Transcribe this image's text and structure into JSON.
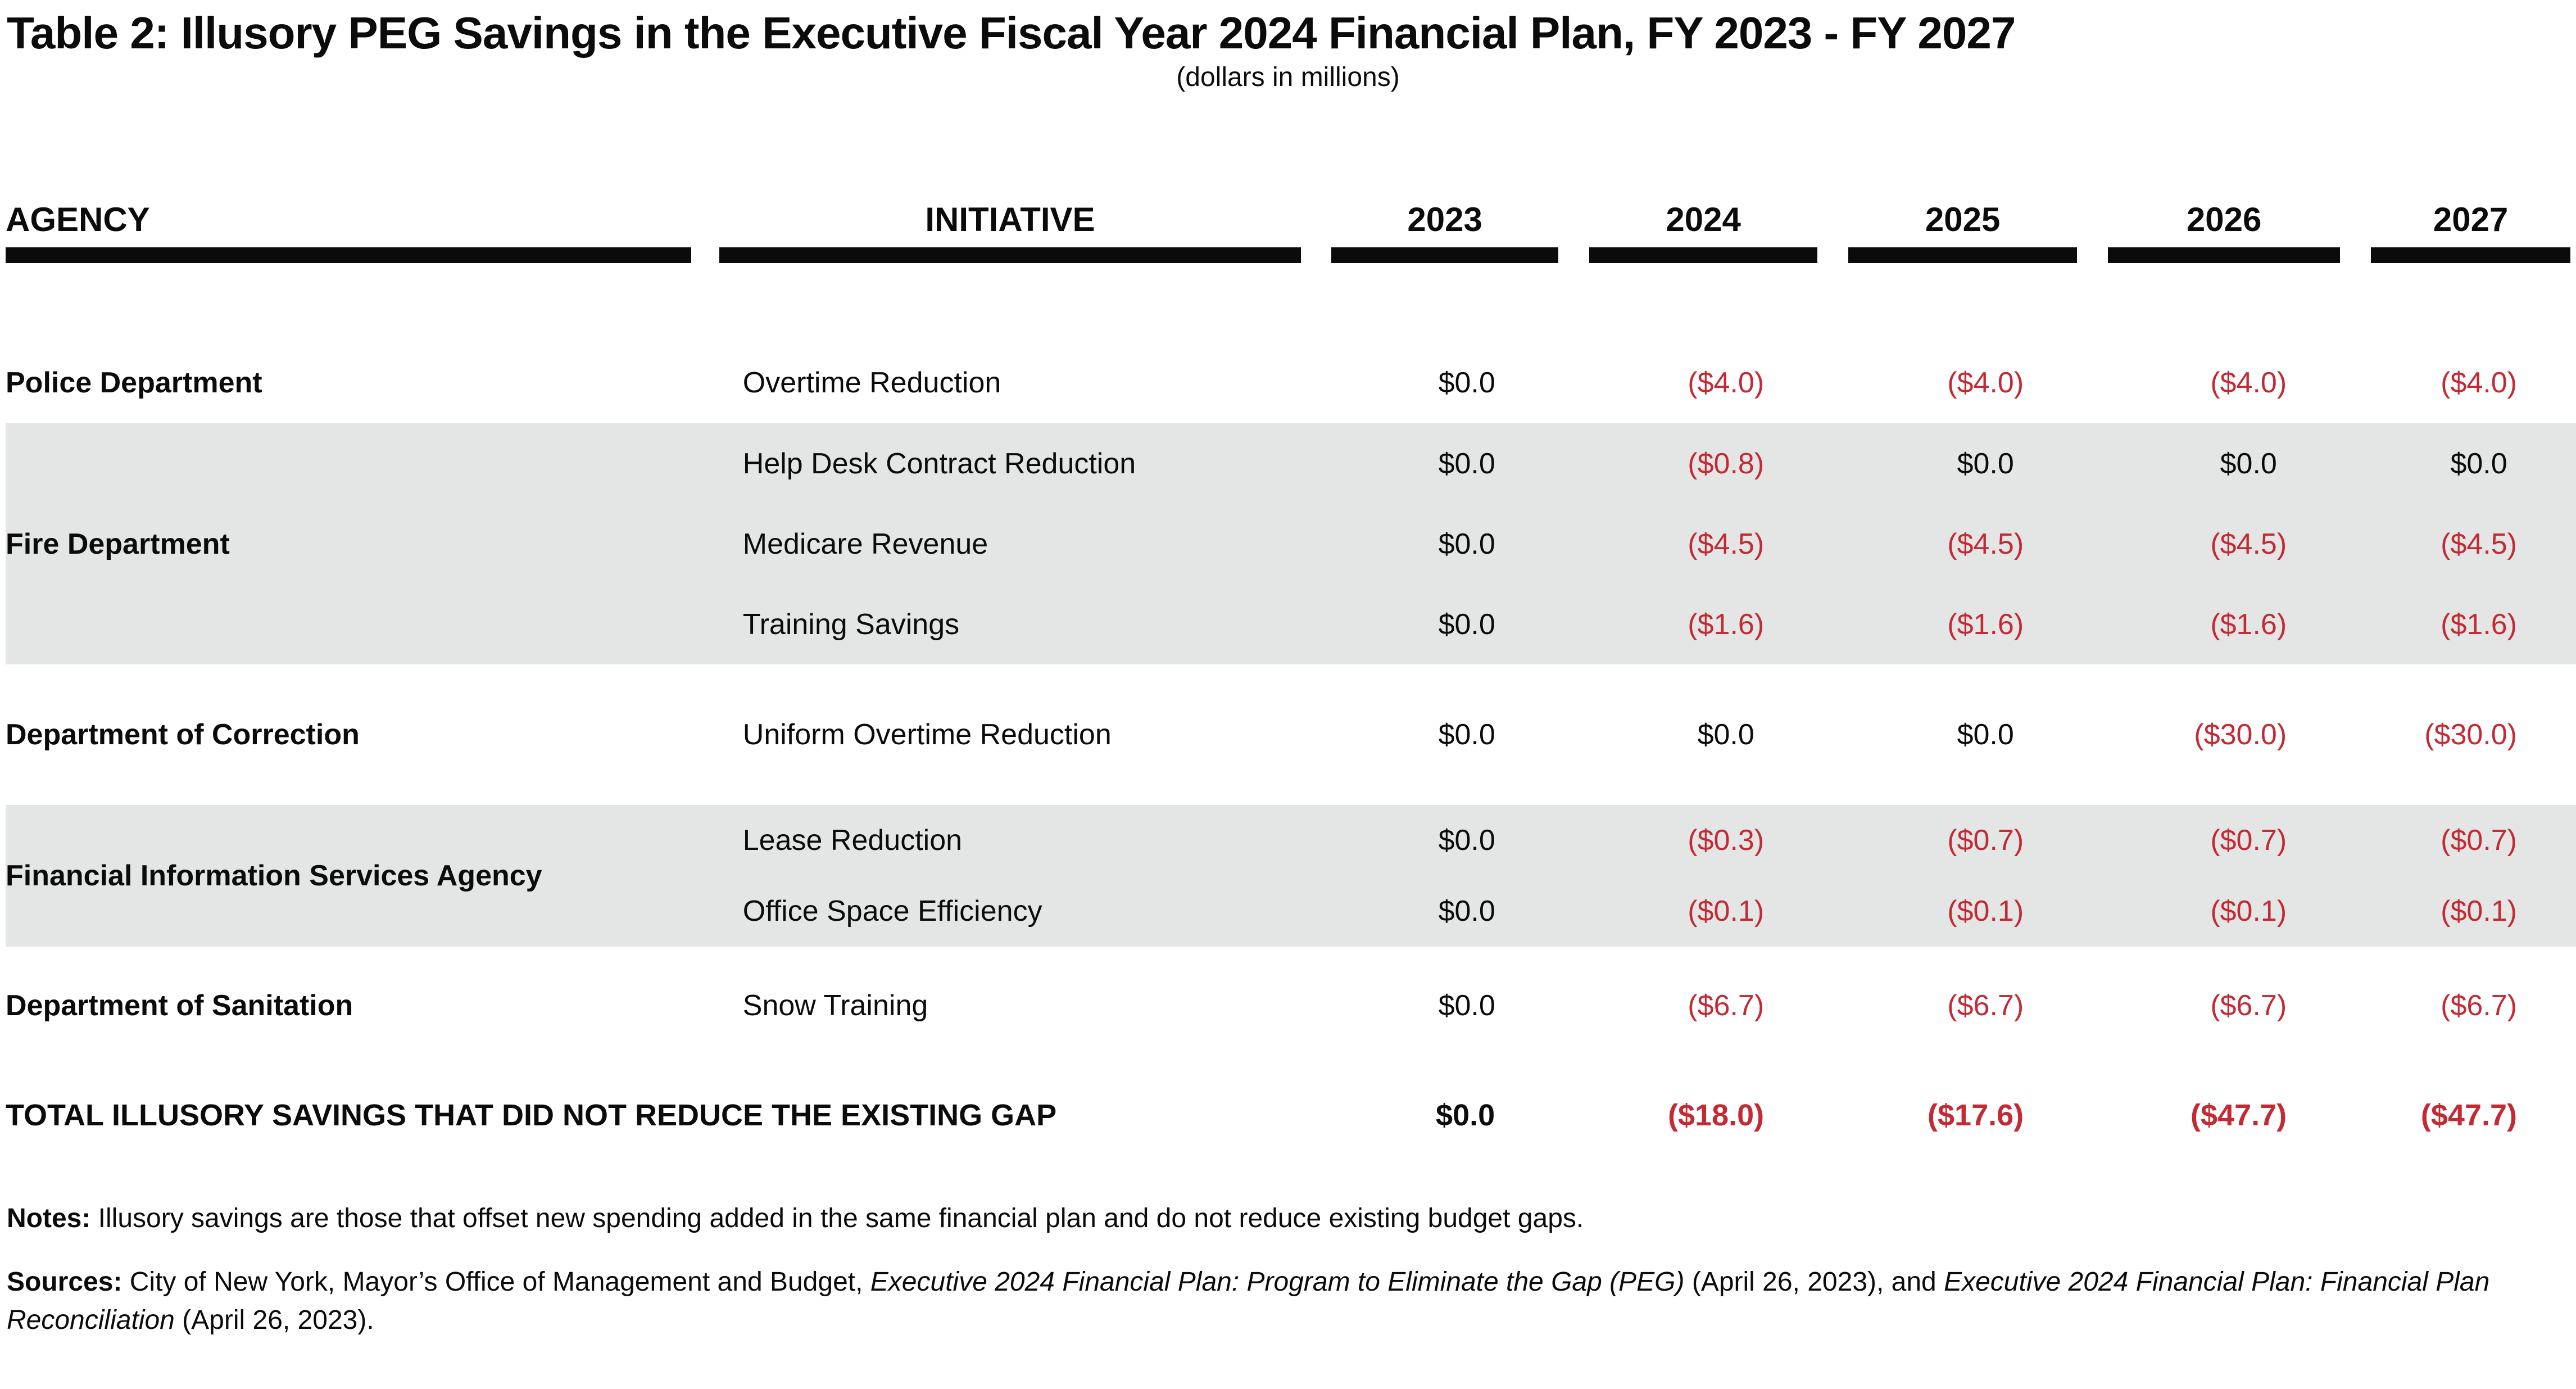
{
  "title": "Table 2: Illusory PEG Savings in the Executive Fiscal Year 2024 Financial Plan, FY 2023 - FY 2027",
  "subtitle": "(dollars in millions)",
  "colors": {
    "negative_red": "#c42a33",
    "band_gray": "#e4e6e5",
    "header_bar_black": "#0b0b0b"
  },
  "table": {
    "columns": [
      "AGENCY",
      "INITIATIVE",
      "2023",
      "2024",
      "2025",
      "2026",
      "2027"
    ],
    "groups": [
      {
        "agency": "Police Department",
        "shaded": false,
        "rows": [
          {
            "initiative": "Overtime Reduction",
            "values": [
              "$0.0",
              "($4.0)",
              "($4.0)",
              "($4.0)",
              "($4.0)"
            ]
          }
        ]
      },
      {
        "agency": "Fire Department",
        "shaded": true,
        "rows": [
          {
            "initiative": "Help Desk Contract Reduction",
            "values": [
              "$0.0",
              "($0.8)",
              "$0.0",
              "$0.0",
              "$0.0"
            ]
          },
          {
            "initiative": "Medicare Revenue",
            "values": [
              "$0.0",
              "($4.5)",
              "($4.5)",
              "($4.5)",
              "($4.5)"
            ]
          },
          {
            "initiative": "Training Savings",
            "values": [
              "$0.0",
              "($1.6)",
              "($1.6)",
              "($1.6)",
              "($1.6)"
            ]
          }
        ]
      },
      {
        "agency": "Department of Correction",
        "shaded": false,
        "rows": [
          {
            "initiative": "Uniform Overtime Reduction",
            "values": [
              "$0.0",
              "$0.0",
              "$0.0",
              "($30.0)",
              "($30.0)"
            ]
          }
        ]
      },
      {
        "agency": "Financial Information Services Agency",
        "shaded": true,
        "rows": [
          {
            "initiative": "Lease Reduction",
            "values": [
              "$0.0",
              "($0.3)",
              "($0.7)",
              "($0.7)",
              "($0.7)"
            ]
          },
          {
            "initiative": "Office Space Efficiency",
            "values": [
              "$0.0",
              "($0.1)",
              "($0.1)",
              "($0.1)",
              "($0.1)"
            ]
          }
        ]
      },
      {
        "agency": "Department of Sanitation",
        "shaded": false,
        "rows": [
          {
            "initiative": "Snow Training",
            "values": [
              "$0.0",
              "($6.7)",
              "($6.7)",
              "($6.7)",
              "($6.7)"
            ]
          }
        ]
      }
    ],
    "total": {
      "label": "TOTAL ILLUSORY SAVINGS THAT DID NOT REDUCE THE EXISTING GAP",
      "values": [
        "$0.0",
        "($18.0)",
        "($17.6)",
        "($47.7)",
        "($47.7)"
      ]
    }
  },
  "notes": {
    "label": "Notes:",
    "text": " Illusory savings are those that offset new spending added in the same financial plan and do not reduce existing budget gaps."
  },
  "sources": {
    "label": "Sources:",
    "segments": [
      {
        "text": " City of New York, Mayor’s Office of Management and Budget, ",
        "italic": false
      },
      {
        "text": "Executive 2024 Financial Plan: Program to Eliminate the Gap (PEG)",
        "italic": true
      },
      {
        "text": " (April 26, 2023), and ",
        "italic": false
      },
      {
        "text": "Executive 2024 Financial Plan: Financial Plan Reconciliation",
        "italic": true
      },
      {
        "text": " (April 26, 2023).",
        "italic": false
      }
    ]
  }
}
